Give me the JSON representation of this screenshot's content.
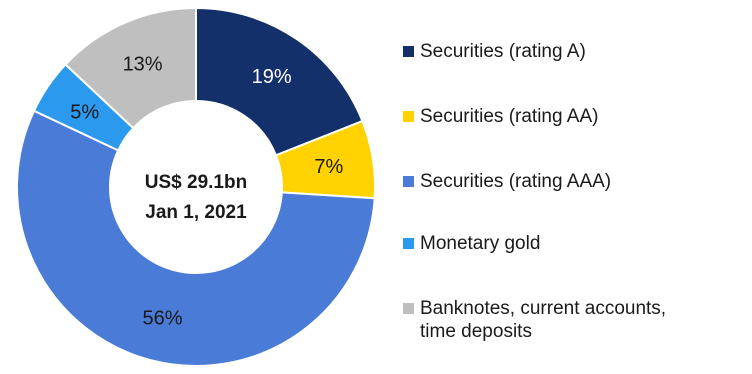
{
  "chart_data": {
    "type": "pie",
    "variant": "donut",
    "center_text": [
      "US$ 29.1bn",
      "Jan 1, 2021"
    ],
    "categories": [
      "Securities (rating A)",
      "Securities (rating AA)",
      "Securities (rating AAA)",
      "Monetary gold",
      "Banknotes, current accounts, time deposits"
    ],
    "values": [
      19,
      7,
      56,
      5,
      13
    ],
    "value_labels": [
      "19%",
      "7%",
      "56%",
      "5%",
      "13%"
    ],
    "colors": [
      "#14306b",
      "#ffd200",
      "#4a7bd6",
      "#2b99ee",
      "#bfbfbf"
    ],
    "label_colors": [
      "#ffffff",
      "#1a1a1a",
      "#1a1a1a",
      "#1a1a1a",
      "#1a1a1a"
    ],
    "legend_position": "right"
  },
  "legend": {
    "items": [
      {
        "label": "Securities (rating A)",
        "color": "#14306b"
      },
      {
        "label": "Securities (rating AA)",
        "color": "#ffd200"
      },
      {
        "label": "Securities (rating AAA)",
        "color": "#4a7bd6"
      },
      {
        "label": "Monetary gold",
        "color": "#2b99ee"
      },
      {
        "label": "Banknotes, current accounts,\ntime deposits",
        "color": "#bfbfbf"
      }
    ]
  }
}
